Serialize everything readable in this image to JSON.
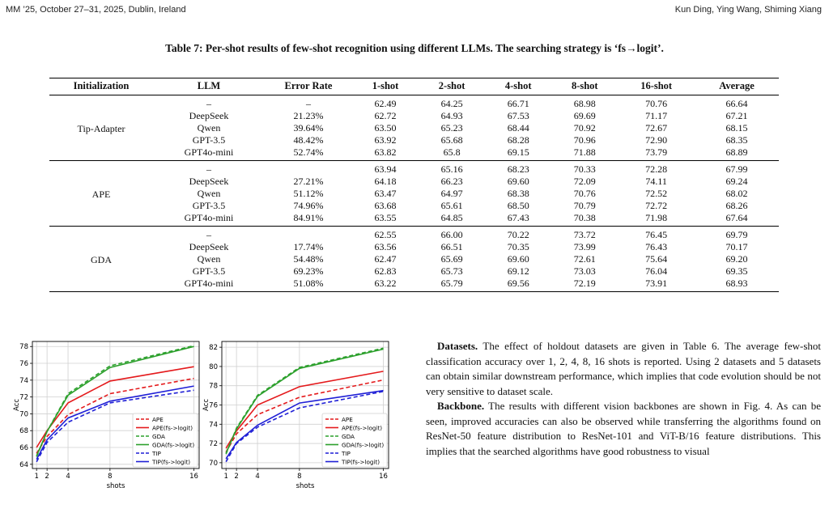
{
  "header": {
    "left": "MM ’25, October 27–31, 2025, Dublin, Ireland",
    "right": "Kun Ding, Ying Wang, Shiming Xiang"
  },
  "caption": "Table 7: Per-shot results of few-shot recognition using different LLMs. The searching strategy is ‘fs→logit’.",
  "table": {
    "headers": [
      "Initialization",
      "LLM",
      "Error Rate",
      "1-shot",
      "2-shot",
      "4-shot",
      "8-shot",
      "16-shot",
      "Average"
    ],
    "groups": [
      {
        "init": "Tip-Adapter",
        "rows": [
          [
            "–",
            "–",
            "62.49",
            "64.25",
            "66.71",
            "68.98",
            "70.76",
            "66.64"
          ],
          [
            "DeepSeek",
            "21.23%",
            "62.72",
            "64.93",
            "67.53",
            "69.69",
            "71.17",
            "67.21"
          ],
          [
            "Qwen",
            "39.64%",
            "63.50",
            "65.23",
            "68.44",
            "70.92",
            "72.67",
            "68.15"
          ],
          [
            "GPT-3.5",
            "48.42%",
            "63.92",
            "65.68",
            "68.28",
            "70.96",
            "72.90",
            "68.35"
          ],
          [
            "GPT4o-mini",
            "52.74%",
            "63.82",
            "65.8",
            "69.15",
            "71.88",
            "73.79",
            "68.89"
          ]
        ]
      },
      {
        "init": "APE",
        "rows": [
          [
            "–",
            "",
            "63.94",
            "65.16",
            "68.23",
            "70.33",
            "72.28",
            "67.99"
          ],
          [
            "DeepSeek",
            "27.21%",
            "64.18",
            "66.23",
            "69.60",
            "72.09",
            "74.11",
            "69.24"
          ],
          [
            "Qwen",
            "51.12%",
            "63.47",
            "64.97",
            "68.38",
            "70.76",
            "72.52",
            "68.02"
          ],
          [
            "GPT-3.5",
            "74.96%",
            "63.68",
            "65.61",
            "68.50",
            "70.79",
            "72.72",
            "68.26"
          ],
          [
            "GPT4o-mini",
            "84.91%",
            "63.55",
            "64.85",
            "67.43",
            "70.38",
            "71.98",
            "67.64"
          ]
        ]
      },
      {
        "init": "GDA",
        "rows": [
          [
            "–",
            "",
            "62.55",
            "66.00",
            "70.22",
            "73.72",
            "76.45",
            "69.79"
          ],
          [
            "DeepSeek",
            "17.74%",
            "63.56",
            "66.51",
            "70.35",
            "73.99",
            "76.43",
            "70.17"
          ],
          [
            "Qwen",
            "54.48%",
            "62.47",
            "65.69",
            "69.60",
            "72.61",
            "75.64",
            "69.20"
          ],
          [
            "GPT-3.5",
            "69.23%",
            "62.83",
            "65.73",
            "69.12",
            "73.03",
            "76.04",
            "69.35"
          ],
          [
            "GPT4o-mini",
            "51.08%",
            "63.22",
            "65.79",
            "69.56",
            "72.19",
            "73.91",
            "68.93"
          ]
        ]
      }
    ]
  },
  "chart_data": [
    {
      "type": "line",
      "xlabel": "shots",
      "ylabel": "Acc",
      "x": [
        1,
        2,
        4,
        8,
        16
      ],
      "xticks": [
        1,
        2,
        4,
        8,
        16
      ],
      "ylim": [
        63.5,
        78.6
      ],
      "yticks": [
        64,
        66,
        68,
        70,
        72,
        74,
        76,
        78
      ],
      "grid": true,
      "legend_position": "lower-right",
      "series": [
        {
          "name": "APE",
          "color": "#e41a1c",
          "dashed": true,
          "values": [
            65.3,
            67.3,
            69.9,
            72.4,
            74.2
          ]
        },
        {
          "name": "APE(fs->logit)",
          "color": "#e41a1c",
          "dashed": false,
          "values": [
            66.0,
            68.0,
            71.3,
            73.9,
            75.6
          ]
        },
        {
          "name": "GDA",
          "color": "#2ca02c",
          "dashed": true,
          "values": [
            64.9,
            67.9,
            72.4,
            75.7,
            78.1
          ]
        },
        {
          "name": "GDA(fs->logit)",
          "color": "#2ca02c",
          "dashed": false,
          "values": [
            65.0,
            67.9,
            72.2,
            75.5,
            78.0
          ]
        },
        {
          "name": "TIP",
          "color": "#1f1fd6",
          "dashed": true,
          "values": [
            64.3,
            66.6,
            69.0,
            71.3,
            72.8
          ]
        },
        {
          "name": "TIP(fs->logit)",
          "color": "#1f1fd6",
          "dashed": false,
          "values": [
            64.6,
            66.9,
            69.5,
            71.5,
            73.3
          ]
        }
      ]
    },
    {
      "type": "line",
      "xlabel": "shots",
      "ylabel": "Acc",
      "x": [
        1,
        2,
        4,
        8,
        16
      ],
      "xticks": [
        1,
        2,
        4,
        8,
        16
      ],
      "ylim": [
        69.4,
        82.6
      ],
      "yticks": [
        70,
        72,
        74,
        76,
        78,
        80,
        82
      ],
      "grid": true,
      "legend_position": "lower-right",
      "series": [
        {
          "name": "APE",
          "color": "#e41a1c",
          "dashed": true,
          "values": [
            71.1,
            73.0,
            75.0,
            76.8,
            78.6
          ]
        },
        {
          "name": "APE(fs->logit)",
          "color": "#e41a1c",
          "dashed": false,
          "values": [
            71.5,
            73.3,
            76.0,
            77.9,
            79.5
          ]
        },
        {
          "name": "GDA",
          "color": "#2ca02c",
          "dashed": true,
          "values": [
            70.9,
            73.6,
            77.0,
            79.9,
            81.9
          ]
        },
        {
          "name": "GDA(fs->logit)",
          "color": "#2ca02c",
          "dashed": false,
          "values": [
            71.0,
            73.5,
            76.9,
            79.8,
            81.8
          ]
        },
        {
          "name": "TIP",
          "color": "#1f1fd6",
          "dashed": true,
          "values": [
            70.1,
            72.0,
            73.7,
            75.7,
            77.4
          ]
        },
        {
          "name": "TIP(fs->logit)",
          "color": "#1f1fd6",
          "dashed": false,
          "values": [
            70.4,
            72.1,
            73.9,
            76.2,
            77.5
          ]
        }
      ]
    }
  ],
  "body": {
    "p1_head": "Datasets.",
    "p1_text": "The effect of holdout datasets are given in Table 6. The average few-shot classification accuracy over 1, 2, 4, 8, 16 shots is reported. Using 2 datasets and 5 datasets can obtain similar downstream performance, which implies that code evolution should be not very sensitive to dataset scale.",
    "p2_head": "Backbone.",
    "p2_text": "The results with different vision backbones are shown in Fig. 4. As can be seen, improved accuracies can also be observed while transferring the algorithms found on ResNet-50 feature distribution to ResNet-101 and ViT-B/16 feature distributions. This implies that the searched algorithms have good robustness to visual"
  }
}
